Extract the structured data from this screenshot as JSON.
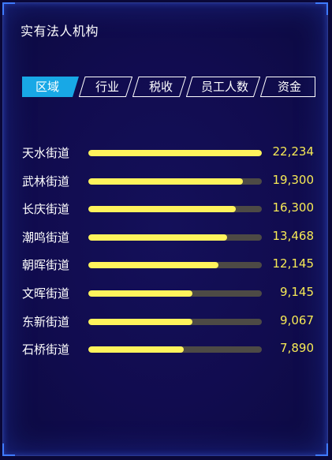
{
  "panel": {
    "title": "实有法人机构"
  },
  "tabs": [
    {
      "label": "区域",
      "active": true
    },
    {
      "label": "行业",
      "active": false
    },
    {
      "label": "税收",
      "active": false
    },
    {
      "label": "员工人数",
      "active": false
    },
    {
      "label": "资金",
      "active": false
    }
  ],
  "ranking": [
    {
      "name": "天水街道",
      "value": "22,234",
      "fraction": 1.0
    },
    {
      "name": "武林街道",
      "value": "19,300",
      "fraction": 0.89
    },
    {
      "name": "长庆街道",
      "value": "16,300",
      "fraction": 0.85
    },
    {
      "name": "潮鸣街道",
      "value": "13,468",
      "fraction": 0.8
    },
    {
      "name": "朝晖街道",
      "value": "12,145",
      "fraction": 0.75
    },
    {
      "name": "文晖街道",
      "value": "9,145",
      "fraction": 0.6
    },
    {
      "name": "东新街道",
      "value": "9,067",
      "fraction": 0.6
    },
    {
      "name": "石桥街道",
      "value": "7,890",
      "fraction": 0.55
    }
  ],
  "colors": {
    "active_tab": "#18a8e6",
    "bar_fill": "#fff35c",
    "bar_track": "#4d4a45",
    "value_text": "#f7ea55"
  }
}
